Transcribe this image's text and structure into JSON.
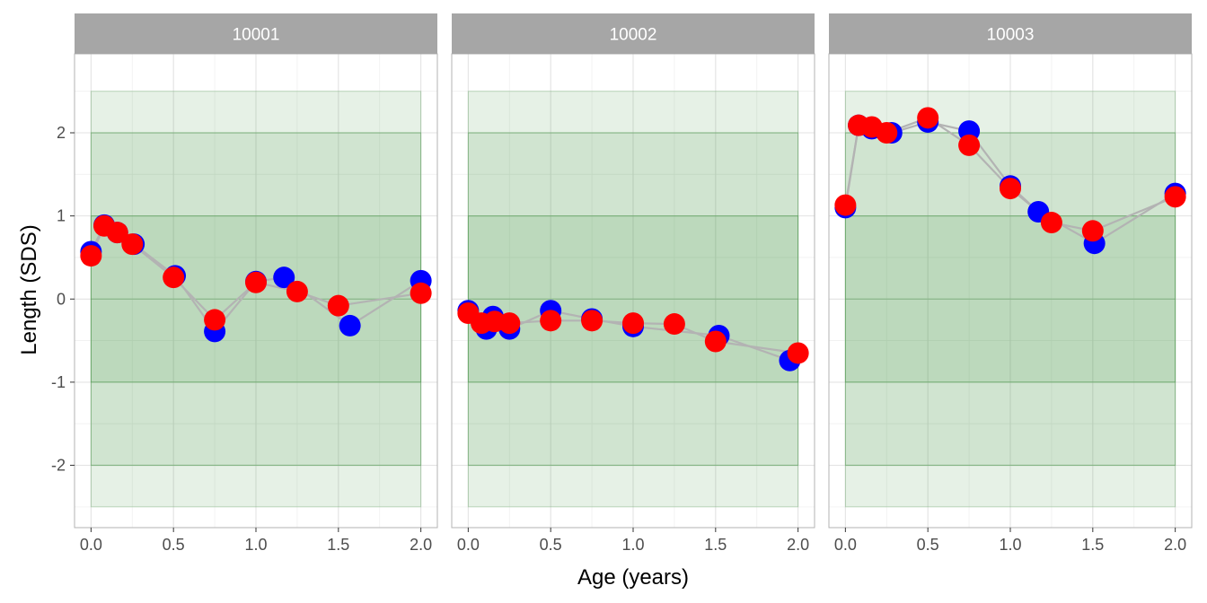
{
  "chart_data": {
    "type": "scatter",
    "xlabel": "Age (years)",
    "ylabel": "Length (SDS)",
    "xlim": [
      -0.1,
      2.1
    ],
    "ylim": [
      -2.75,
      2.95
    ],
    "x_ticks": [
      0.0,
      0.5,
      1.0,
      1.5,
      2.0
    ],
    "x_tick_labels": [
      "0.0",
      "0.5",
      "1.0",
      "1.5",
      "2.0"
    ],
    "y_ticks": [
      -2,
      -1,
      0,
      1,
      2
    ],
    "y_tick_labels": [
      "-2",
      "-1",
      "0",
      "1",
      "2"
    ],
    "bands": [
      {
        "x": [
          0,
          2
        ],
        "y": [
          -2.5,
          2.5
        ],
        "color": "#2e8b2e",
        "opacity": 0.12
      },
      {
        "x": [
          0,
          2
        ],
        "y": [
          -2,
          2
        ],
        "color": "#2e8b2e",
        "opacity": 0.12
      },
      {
        "x": [
          0,
          2
        ],
        "y": [
          -1,
          1
        ],
        "color": "#2e8b2e",
        "opacity": 0.12
      }
    ],
    "band_edges": [
      -2,
      -1,
      0,
      1,
      2
    ],
    "line_color": "#b3b3b3",
    "panels": [
      {
        "label": "10001",
        "series": [
          {
            "color": "#0000ff",
            "points": [
              [
                0.0,
                0.57
              ],
              [
                0.08,
                0.89
              ],
              [
                0.16,
                0.8
              ],
              [
                0.26,
                0.66
              ],
              [
                0.51,
                0.28
              ],
              [
                0.75,
                -0.39
              ],
              [
                1.0,
                0.21
              ],
              [
                1.17,
                0.26
              ],
              [
                1.57,
                -0.32
              ],
              [
                2.0,
                0.22
              ]
            ]
          },
          {
            "color": "#ff0000",
            "points": [
              [
                0.0,
                0.52
              ],
              [
                0.08,
                0.88
              ],
              [
                0.16,
                0.8
              ],
              [
                0.25,
                0.66
              ],
              [
                0.5,
                0.26
              ],
              [
                0.75,
                -0.25
              ],
              [
                1.0,
                0.2
              ],
              [
                1.25,
                0.09
              ],
              [
                1.5,
                -0.08
              ],
              [
                2.0,
                0.07
              ]
            ]
          }
        ]
      },
      {
        "label": "10002",
        "series": [
          {
            "color": "#0000ff",
            "points": [
              [
                0.0,
                -0.14
              ],
              [
                0.11,
                -0.36
              ],
              [
                0.15,
                -0.21
              ],
              [
                0.25,
                -0.36
              ],
              [
                0.5,
                -0.14
              ],
              [
                0.75,
                -0.24
              ],
              [
                1.0,
                -0.33
              ],
              [
                1.52,
                -0.44
              ],
              [
                1.95,
                -0.74
              ]
            ]
          },
          {
            "color": "#ff0000",
            "points": [
              [
                0.0,
                -0.17
              ],
              [
                0.08,
                -0.29
              ],
              [
                0.16,
                -0.27
              ],
              [
                0.25,
                -0.29
              ],
              [
                0.5,
                -0.26
              ],
              [
                0.75,
                -0.26
              ],
              [
                1.0,
                -0.29
              ],
              [
                1.25,
                -0.3
              ],
              [
                1.5,
                -0.51
              ],
              [
                2.0,
                -0.65
              ]
            ]
          }
        ]
      },
      {
        "label": "10003",
        "series": [
          {
            "color": "#0000ff",
            "points": [
              [
                0.0,
                1.1
              ],
              [
                0.08,
                2.09
              ],
              [
                0.16,
                2.05
              ],
              [
                0.28,
                2.0
              ],
              [
                0.5,
                2.13
              ],
              [
                0.75,
                2.02
              ],
              [
                1.0,
                1.36
              ],
              [
                1.17,
                1.05
              ],
              [
                1.51,
                0.67
              ],
              [
                2.0,
                1.27
              ]
            ]
          },
          {
            "color": "#ff0000",
            "points": [
              [
                0.0,
                1.13
              ],
              [
                0.08,
                2.09
              ],
              [
                0.16,
                2.07
              ],
              [
                0.25,
                2.0
              ],
              [
                0.5,
                2.18
              ],
              [
                0.75,
                1.85
              ],
              [
                1.0,
                1.33
              ],
              [
                1.25,
                0.92
              ],
              [
                1.5,
                0.82
              ],
              [
                2.0,
                1.23
              ]
            ]
          }
        ]
      }
    ]
  }
}
